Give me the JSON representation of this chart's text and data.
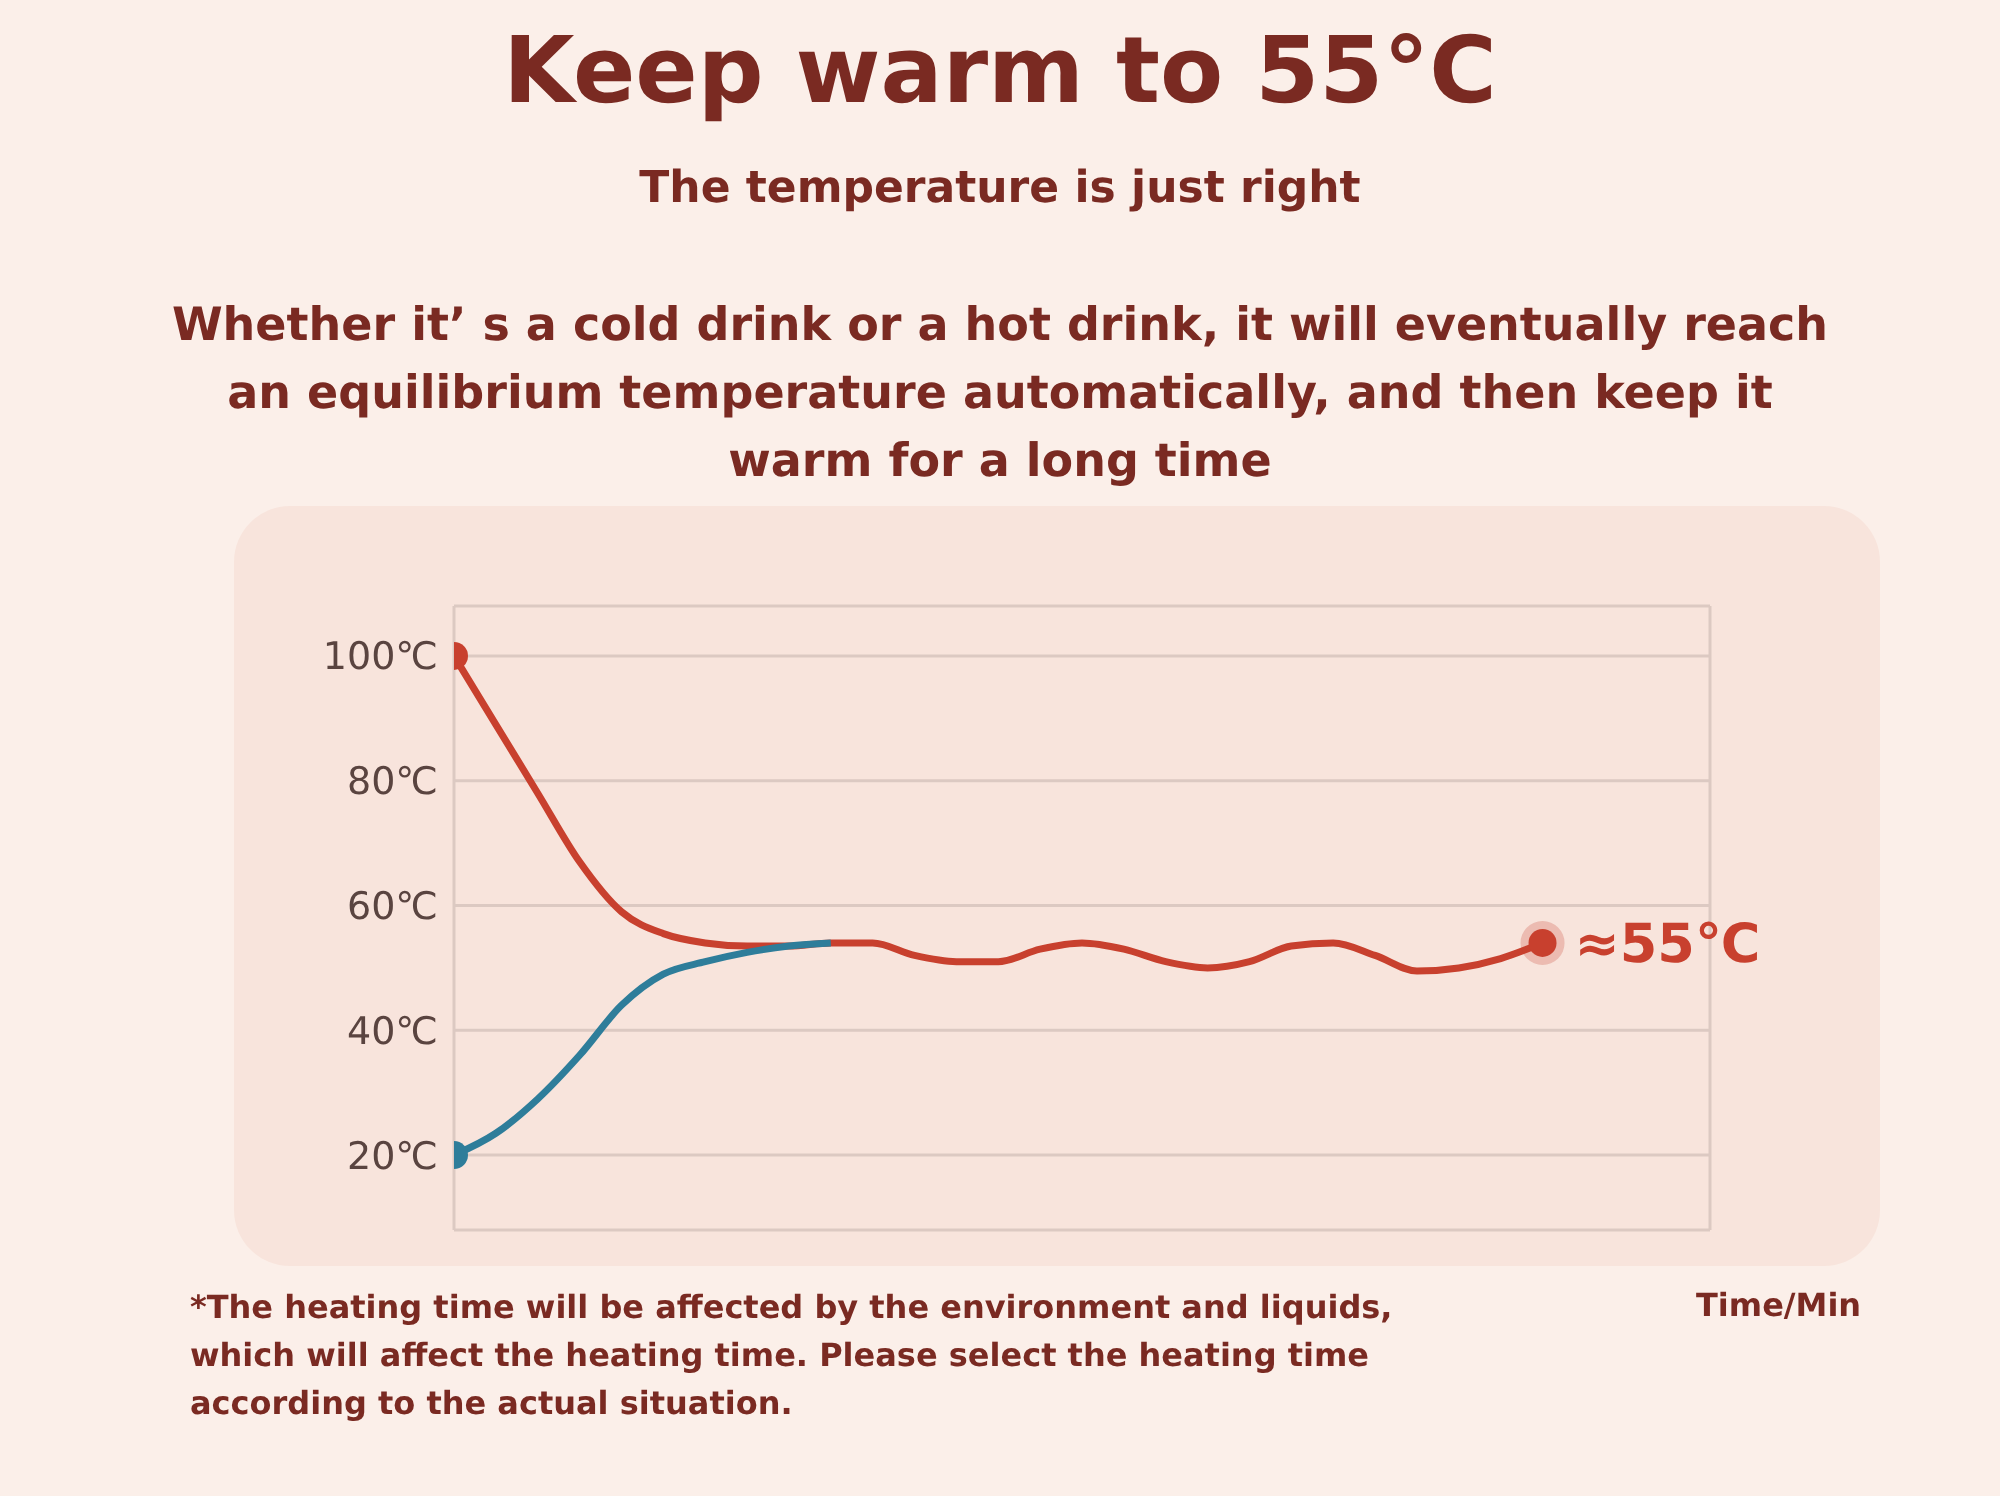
{
  "chart_data": {
    "type": "line",
    "title": "Keep warm to 55°C",
    "subtitle": "The temperature is just right",
    "annotations": [
      "Whether it’ s a cold drink or a hot drink, it will eventually reach an equilibrium temperature automatically, and then keep it warm for a long time",
      "≈55℃",
      "*The heating time will be affected by the environment and liquids, which will affect the heating time. Please select the heating time according to the actual situation."
    ],
    "xlabel": "Time/Min",
    "categories": [
      null,
      null,
      null,
      null,
      null,
      null,
      null,
      null,
      null,
      null,
      null,
      null,
      null,
      null,
      null,
      null,
      null,
      null,
      null,
      null,
      null,
      null,
      null,
      null,
      null,
      null,
      null,
      null,
      null,
      null,
      null
    ],
    "series": [
      {
        "color": "#c8402e",
        "values": [
          100,
          89,
          78,
          67,
          59,
          55.5,
          54,
          53.5,
          53.5,
          54,
          54,
          52,
          51,
          51,
          53,
          54,
          53,
          51,
          50,
          51,
          53.5,
          54,
          52,
          49.5,
          50,
          51.5,
          54,
          null,
          null,
          null,
          null
        ]
      },
      {
        "color": "#2e7d9a",
        "values": [
          20,
          23.5,
          29,
          36,
          44,
          49,
          51,
          52.5,
          53.5,
          54,
          null,
          null,
          null,
          null,
          null,
          null,
          null,
          null,
          null,
          null,
          null,
          null,
          null,
          null,
          null,
          null,
          null,
          null,
          null,
          null,
          null
        ]
      }
    ],
    "ylim": [
      8,
      108
    ],
    "yticks": [
      {
        "value": 20,
        "label": "20℃"
      },
      {
        "value": 40,
        "label": "40℃"
      },
      {
        "value": 60,
        "label": "60℃"
      },
      {
        "value": 80,
        "label": "80℃"
      },
      {
        "value": 100,
        "label": "100℃"
      }
    ],
    "grid": true,
    "tick_labels": "y",
    "line_style": "solid"
  }
}
